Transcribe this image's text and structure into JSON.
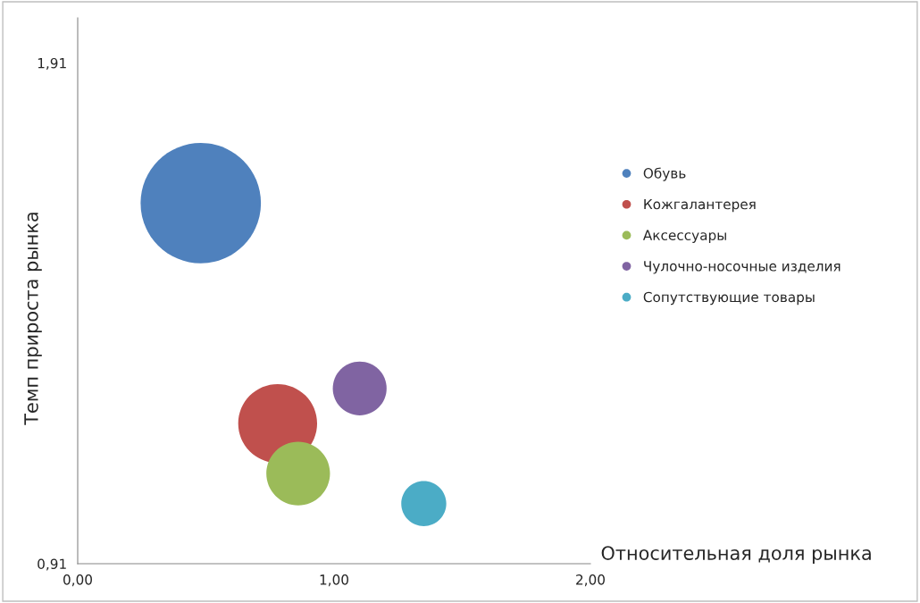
{
  "chart_data": {
    "type": "bubble",
    "xlabel": "Относительная доля рынка",
    "ylabel": "Темп прироста рынка",
    "xlim": [
      0,
      2
    ],
    "ylim": [
      0.91,
      2.0
    ],
    "xticks": [
      {
        "value": 0,
        "label": "0,00"
      },
      {
        "value": 1,
        "label": "1,00"
      },
      {
        "value": 2,
        "label": "2,00"
      }
    ],
    "yticks": [
      {
        "value": 0.91,
        "label": "0,91"
      },
      {
        "value": 1.91,
        "label": "1,91"
      }
    ],
    "grid": false,
    "legend": "right",
    "series": [
      {
        "name": "Обувь",
        "color": "#4f81bd",
        "x": [
          0.48
        ],
        "values": [
          1.63
        ],
        "sizes": [
          1
        ]
      },
      {
        "name": "Кожгалантерея",
        "color": "#c0504d",
        "x": [
          0.78
        ],
        "values": [
          1.19
        ],
        "sizes": [
          0.43
        ]
      },
      {
        "name": "Аксессуары",
        "color": "#9bbb59",
        "x": [
          0.86
        ],
        "values": [
          1.09
        ],
        "sizes": [
          0.28
        ]
      },
      {
        "name": "Чулочно-носочные изделия",
        "color": "#8064a2",
        "x": [
          1.1
        ],
        "values": [
          1.26
        ],
        "sizes": [
          0.2
        ]
      },
      {
        "name": "Сопутствующие товары",
        "color": "#4bacc6",
        "x": [
          1.35
        ],
        "values": [
          1.03
        ],
        "sizes": [
          0.14
        ]
      }
    ]
  }
}
